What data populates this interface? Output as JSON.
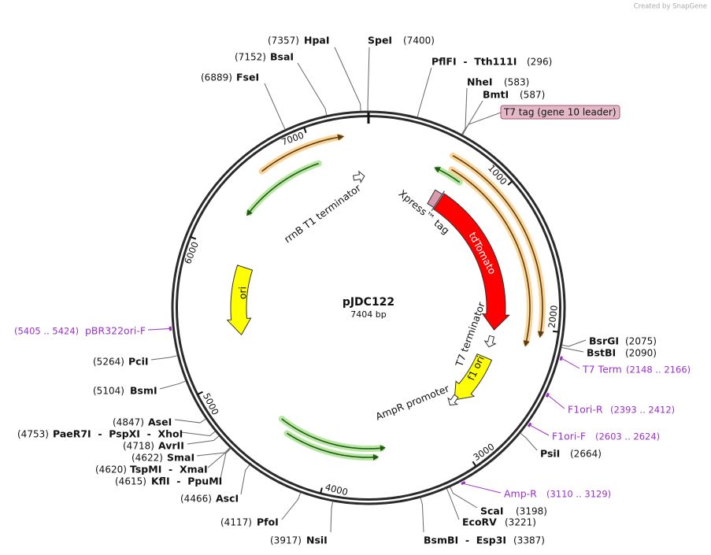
{
  "credit": "Created by SnapGene",
  "plasmid": {
    "name": "pJDC122",
    "size": {
      "value": 7404,
      "label": "7404 bp"
    }
  },
  "ticks": [
    1000,
    2000,
    3000,
    4000,
    5000,
    6000,
    7000
  ],
  "enzymes": [
    {
      "names": "HpaI",
      "position": {
        "value": 7357,
        "label": "(7357)"
      }
    },
    {
      "names": "BsaI",
      "position": {
        "value": 7152,
        "label": "(7152)"
      }
    },
    {
      "names": "FseI",
      "position": {
        "value": 6889,
        "label": "(6889)"
      }
    },
    {
      "names": "SpeI",
      "position": {
        "value": 7400,
        "label": "(7400)"
      }
    },
    {
      "names": "PflFI  -  Tth111I",
      "position": {
        "value": 296,
        "label": "(296)"
      }
    },
    {
      "names": "NheI",
      "position": {
        "value": 583,
        "label": "(583)"
      }
    },
    {
      "names": "BmtI",
      "position": {
        "value": 587,
        "label": "(587)"
      }
    },
    {
      "names": "BsrGI",
      "position": {
        "value": 2075,
        "label": "(2075)"
      }
    },
    {
      "names": "BstBI",
      "position": {
        "value": 2090,
        "label": "(2090)"
      }
    },
    {
      "names": "PsiI",
      "position": {
        "value": 2664,
        "label": "(2664)"
      }
    },
    {
      "names": "ScaI",
      "position": {
        "value": 3198,
        "label": "(3198)"
      }
    },
    {
      "names": "EcoRV",
      "position": {
        "value": 3221,
        "label": "(3221)"
      }
    },
    {
      "names": "BsmBI  -  Esp3I",
      "position": {
        "value": 3387,
        "label": "(3387)"
      }
    },
    {
      "names": "NsiI",
      "position": {
        "value": 3917,
        "label": "(3917)"
      }
    },
    {
      "names": "PfoI",
      "position": {
        "value": 4117,
        "label": "(4117)"
      }
    },
    {
      "names": "AscI",
      "position": {
        "value": 4466,
        "label": "(4466)"
      }
    },
    {
      "names": "KflI  -  PpuMI",
      "position": {
        "value": 4615,
        "label": "(4615)"
      }
    },
    {
      "names": "TspMI  -  XmaI",
      "position": {
        "value": 4620,
        "label": "(4620)"
      }
    },
    {
      "names": "SmaI",
      "position": {
        "value": 4622,
        "label": "(4622)"
      }
    },
    {
      "names": "AvrII",
      "position": {
        "value": 4718,
        "label": "(4718)"
      }
    },
    {
      "names": "PaeR7I  -  PspXI  -  XhoI",
      "position": {
        "value": 4753,
        "label": "(4753)"
      }
    },
    {
      "names": "AseI",
      "position": {
        "value": 4847,
        "label": "(4847)"
      }
    },
    {
      "names": "BsmI",
      "position": {
        "value": 5104,
        "label": "(5104)"
      }
    },
    {
      "names": "PciI",
      "position": {
        "value": 5264,
        "label": "(5264)"
      }
    }
  ],
  "primers": [
    {
      "name": "T7 Term",
      "range": "(2148 .. 2166)"
    },
    {
      "name": "F1ori-R",
      "range": "(2393 .. 2412)"
    },
    {
      "name": "F1ori-F",
      "range": "(2603 .. 2624)"
    },
    {
      "name": "Amp-R",
      "range": "(3110 .. 3129)"
    },
    {
      "name": "pBR322ori-F",
      "range": "(5405 .. 5424)"
    }
  ],
  "features": [
    "tdTomato",
    "Xpress™ tag",
    "T7 tag (gene 10 leader)",
    "T7 terminator",
    "f1 ori",
    "AmpR promoter",
    "ori",
    "rrnB T1 terminator"
  ]
}
